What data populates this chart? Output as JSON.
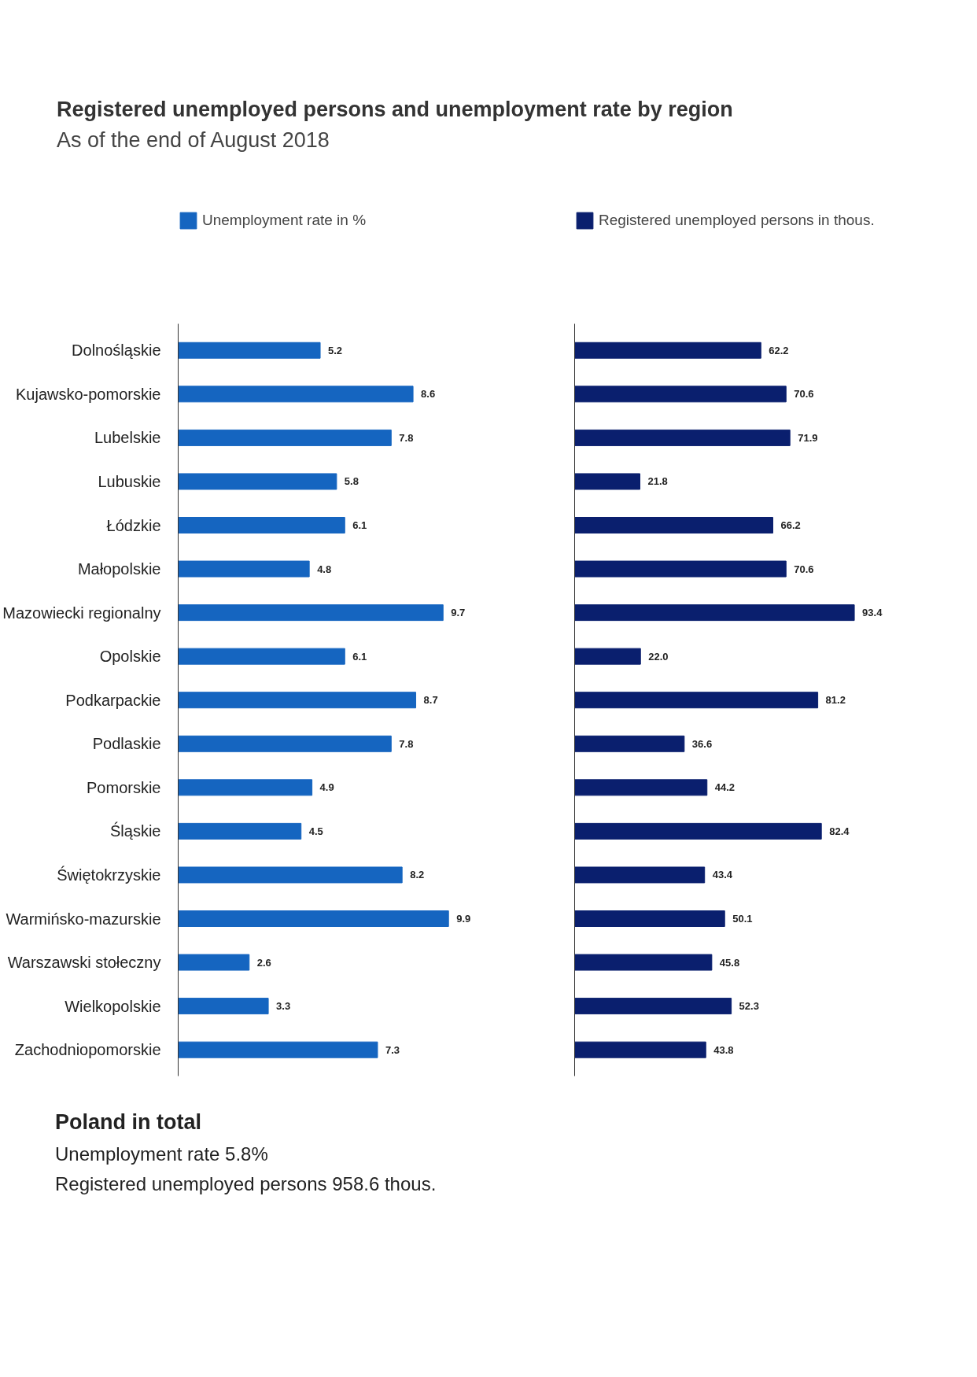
{
  "chart_data": [
    {
      "type": "bar",
      "orientation": "horizontal",
      "title": "Registered unemployed persons and unemployment rate by region",
      "subtitle": "As of the end of August 2018",
      "categories": [
        "Dolnośląskie",
        "Kujawsko-pomorskie",
        "Lubelskie",
        "Lubuskie",
        "Łódzkie",
        "Małopolskie",
        "Mazowiecki regionalny",
        "Opolskie",
        "Podkarpackie",
        "Podlaskie",
        "Pomorskie",
        "Śląskie",
        "Świętokrzyskie",
        "Warmińsko-mazurskie",
        "Warszawski stołeczny",
        "Wielkopolskie",
        "Zachodniopomorskie"
      ],
      "series": [
        {
          "name": "Unemployment rate in %",
          "color": "#1565c0",
          "values": [
            5.2,
            8.6,
            7.8,
            5.8,
            6.1,
            4.8,
            9.7,
            6.1,
            8.7,
            7.8,
            4.9,
            4.5,
            8.2,
            9.9,
            2.6,
            3.3,
            7.3
          ]
        }
      ],
      "data_labels": true,
      "legend": "top",
      "tick_labels": "y",
      "annotations": [
        "Poland in total",
        "Unemployment rate 5.8%",
        "Registered unemployed persons 958.6 thous."
      ]
    },
    {
      "type": "bar",
      "orientation": "horizontal",
      "categories": [
        null,
        null,
        null,
        null,
        null,
        null,
        null,
        null,
        null,
        null,
        null,
        null,
        null,
        null,
        null,
        null,
        null
      ],
      "series": [
        {
          "name": "Registered unemployed persons in thous.",
          "color": "#0a1f6e",
          "values": [
            62.2,
            70.6,
            71.9,
            21.8,
            66.2,
            70.6,
            93.4,
            22.0,
            81.2,
            36.6,
            44.2,
            82.4,
            43.4,
            50.1,
            45.8,
            52.3,
            43.8
          ],
          "value_labels": [
            "62.2",
            "70.6",
            "71.9",
            "21.8",
            "66.2",
            "70.6",
            "93.4",
            "22.0",
            "81.2",
            "36.6",
            "44.2",
            "82.4",
            "43.4",
            "50.1",
            "45.8",
            "52.3",
            "43.8"
          ]
        }
      ],
      "legend": "top",
      "tick_labels": false
    }
  ]
}
